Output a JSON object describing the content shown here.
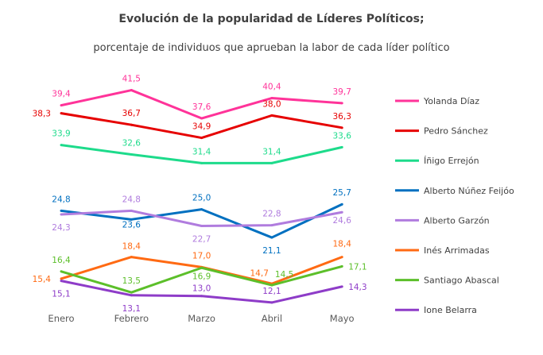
{
  "chart_data": {
    "type": "line",
    "title": "Evolución de la popularidad de Líderes Políticos;",
    "subtitle": "porcentaje de individuos que aprueban la labor de cada líder político",
    "categories": [
      "Enero",
      "Febrero",
      "Marzo",
      "Abril",
      "Mayo"
    ],
    "xlabel": "",
    "ylabel": "",
    "ylim": [
      10,
      42
    ],
    "grid": false,
    "legend": "right",
    "series": [
      {
        "name": "Yolanda Díaz",
        "color": "#FF3399",
        "values": [
          39.4,
          41.5,
          37.6,
          40.4,
          39.7
        ],
        "labels": [
          "39,4",
          "41,5",
          "37,6",
          "40,4",
          "39,7"
        ]
      },
      {
        "name": "Pedro Sánchez",
        "color": "#E60000",
        "values": [
          38.3,
          36.7,
          34.9,
          38.0,
          36.3
        ],
        "labels": [
          "38,3",
          "36,7",
          "34,9",
          "38,0",
          "36,3"
        ]
      },
      {
        "name": "Íñigo Errejón",
        "color": "#1DDB8B",
        "values": [
          33.9,
          32.6,
          31.4,
          31.4,
          33.6
        ],
        "labels": [
          "33,9",
          "32,6",
          "31,4",
          "31,4",
          "33,6"
        ]
      },
      {
        "name": "Alberto Núñez Feijóo",
        "color": "#0070C0",
        "values": [
          24.8,
          23.6,
          25.0,
          21.1,
          25.7
        ],
        "labels": [
          "24,8",
          "23,6",
          "25,0",
          "21,1",
          "25,7"
        ]
      },
      {
        "name": "Alberto Garzón",
        "color": "#B07CDE",
        "values": [
          24.3,
          24.8,
          22.7,
          22.8,
          24.6
        ],
        "labels": [
          "24,3",
          "24,8",
          "22,7",
          "22,8",
          "24,6"
        ]
      },
      {
        "name": "Inés Arrimadas",
        "color": "#FF6A13",
        "values": [
          15.4,
          18.4,
          17.0,
          14.7,
          18.4
        ],
        "labels": [
          "15,4",
          "18,4",
          "17,0",
          "14,7",
          "18,4"
        ]
      },
      {
        "name": "Santiago Abascal",
        "color": "#5CBF2A",
        "values": [
          16.4,
          13.5,
          16.9,
          14.5,
          17.1
        ],
        "labels": [
          "16,4",
          "13,5",
          "16,9",
          "14,5",
          "17,1"
        ]
      },
      {
        "name": "Ione Belarra",
        "color": "#8E3CC8",
        "values": [
          15.1,
          13.1,
          13.0,
          12.1,
          14.3
        ],
        "labels": [
          "15,1",
          "13,1",
          "13,0",
          "12,1",
          "14,3"
        ]
      }
    ]
  }
}
